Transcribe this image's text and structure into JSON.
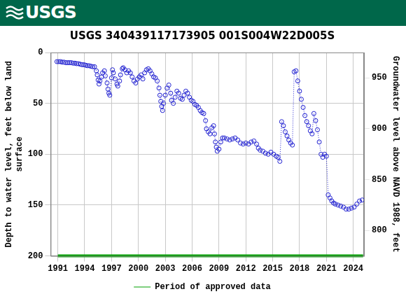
{
  "header": {
    "logo": "USGS"
  },
  "chart_data": {
    "type": "scatter",
    "title": "USGS 340439117173905 001S004W22D005S",
    "y_label": [
      "Depth to water level, feet below land",
      "surface"
    ],
    "y2_label": "Groundwater level above NAVD 1988, feet",
    "xlim": [
      1990.2,
      2025.2
    ],
    "xticks": [
      1991,
      1994,
      1997,
      2000,
      2003,
      2006,
      2009,
      2012,
      2015,
      2018,
      2021,
      2024
    ],
    "ylim": [
      200,
      0
    ],
    "yticks": [
      0,
      50,
      100,
      150,
      200
    ],
    "y2lim": [
      775,
      975
    ],
    "y2ticks": [
      800,
      850,
      900,
      950
    ],
    "grid": true,
    "legend": "bottom",
    "series": [
      {
        "color": "#2020d0",
        "marker": "circle",
        "line_style": "dotted",
        "x": [
          1990.9,
          1991.1,
          1991.3,
          1991.5,
          1991.7,
          1991.9,
          1992.1,
          1992.3,
          1992.5,
          1992.7,
          1992.9,
          1993.1,
          1993.3,
          1993.5,
          1993.7,
          1993.9,
          1994.1,
          1994.3,
          1994.5,
          1994.7,
          1994.9,
          1995.1,
          1995.3,
          1995.4,
          1995.5,
          1995.6,
          1995.7,
          1995.9,
          1996.0,
          1996.2,
          1996.3,
          1996.5,
          1996.6,
          1996.7,
          1996.8,
          1997.0,
          1997.1,
          1997.2,
          1997.4,
          1997.6,
          1997.7,
          1997.9,
          1998.0,
          1998.2,
          1998.3,
          1998.5,
          1998.7,
          1998.9,
          1999.1,
          1999.3,
          1999.5,
          1999.7,
          1999.9,
          2000.1,
          2000.3,
          2000.5,
          2000.7,
          2000.9,
          2001.1,
          2001.3,
          2001.5,
          2001.7,
          2001.9,
          2002.1,
          2002.3,
          2002.4,
          2002.5,
          2002.6,
          2002.7,
          2002.8,
          2003.0,
          2003.2,
          2003.4,
          2003.6,
          2003.7,
          2003.9,
          2004.1,
          2004.3,
          2004.5,
          2004.7,
          2004.9,
          2005.1,
          2005.3,
          2005.5,
          2005.7,
          2005.9,
          2006.1,
          2006.3,
          2006.5,
          2006.7,
          2006.9,
          2007.1,
          2007.3,
          2007.5,
          2007.6,
          2007.8,
          2008.0,
          2008.2,
          2008.4,
          2008.5,
          2008.6,
          2008.7,
          2008.8,
          2009.0,
          2009.2,
          2009.4,
          2009.6,
          2009.9,
          2010.2,
          2010.5,
          2010.8,
          2011.1,
          2011.4,
          2011.7,
          2012.0,
          2012.3,
          2012.6,
          2012.9,
          2013.2,
          2013.4,
          2013.6,
          2013.9,
          2014.2,
          2014.5,
          2014.8,
          2015.1,
          2015.4,
          2015.6,
          2015.8,
          2016.0,
          2016.2,
          2016.4,
          2016.6,
          2016.8,
          2017.0,
          2017.2,
          2017.4,
          2017.6,
          2017.8,
          2018.0,
          2018.2,
          2018.4,
          2018.6,
          2018.8,
          2019.0,
          2019.2,
          2019.4,
          2019.6,
          2019.8,
          2020.0,
          2020.2,
          2020.4,
          2020.6,
          2020.8,
          2021.0,
          2021.2,
          2021.4,
          2021.6,
          2021.8,
          2022.0,
          2022.3,
          2022.6,
          2022.9,
          2023.2,
          2023.5,
          2023.8,
          2024.1,
          2024.4,
          2024.7,
          2025.0
        ],
        "values": [
          9,
          9,
          9,
          9.5,
          9.5,
          10,
          10,
          10,
          10,
          10.5,
          10.5,
          11,
          11,
          11.5,
          12,
          12,
          12.5,
          13,
          13,
          13.5,
          14,
          14,
          18,
          22,
          27,
          31,
          28,
          24,
          20,
          18,
          23,
          30,
          36,
          40,
          42,
          25,
          17,
          20,
          26,
          31,
          33,
          28,
          22,
          16,
          15,
          17,
          20,
          18,
          20,
          24,
          28,
          30,
          26,
          24,
          22,
          26,
          20,
          17,
          16,
          18,
          21,
          24,
          25,
          28,
          35,
          42,
          48,
          53,
          57,
          50,
          42,
          35,
          32,
          40,
          47,
          50,
          44,
          38,
          40,
          45,
          46,
          42,
          38,
          40,
          44,
          47,
          48,
          51,
          52,
          54,
          57,
          59,
          60,
          67,
          75,
          78,
          80,
          74,
          72,
          80,
          88,
          93,
          97,
          95,
          88,
          84,
          84,
          85,
          86,
          85,
          84,
          86,
          89,
          90,
          89,
          90,
          88,
          87,
          90,
          94,
          96,
          97,
          99,
          100,
          98,
          100,
          102,
          103,
          107,
          68,
          72,
          78,
          82,
          86,
          89,
          91,
          19,
          18,
          28,
          38,
          46,
          54,
          62,
          68,
          72,
          77,
          80,
          60,
          67,
          76,
          88,
          100,
          103,
          100,
          102,
          140,
          143,
          146,
          148,
          149,
          150,
          151,
          152,
          154,
          154,
          153,
          152,
          149,
          146,
          145
        ]
      },
      {
        "name": "Period of approved data",
        "color": "#00a000",
        "line_style": "solid",
        "x": [
          1991.0,
          2025.1
        ],
        "values": [
          200,
          200
        ]
      }
    ]
  }
}
